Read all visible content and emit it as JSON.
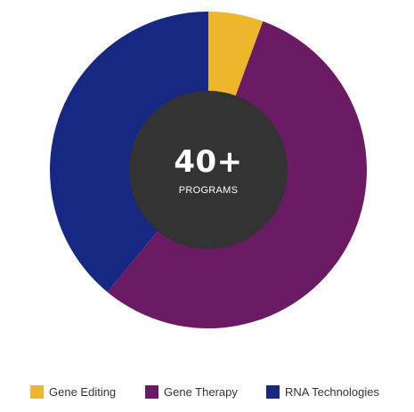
{
  "chart_data": {
    "type": "pie",
    "variant": "donut",
    "categories": [
      "Gene Editing",
      "Gene Therapy",
      "RNA Technologies"
    ],
    "values": [
      5.6,
      55.4,
      39.0
    ],
    "colors": [
      "#EDB72B",
      "#6A1B63",
      "#172882"
    ],
    "center": {
      "value": "40+",
      "label": "PROGRAMS"
    },
    "legend_position": "bottom"
  },
  "legend": {
    "items": [
      {
        "label": "Gene Editing",
        "color": "#EDB72B"
      },
      {
        "label": "Gene Therapy",
        "color": "#6A1B63"
      },
      {
        "label": "RNA Technologies",
        "color": "#172882"
      }
    ]
  }
}
